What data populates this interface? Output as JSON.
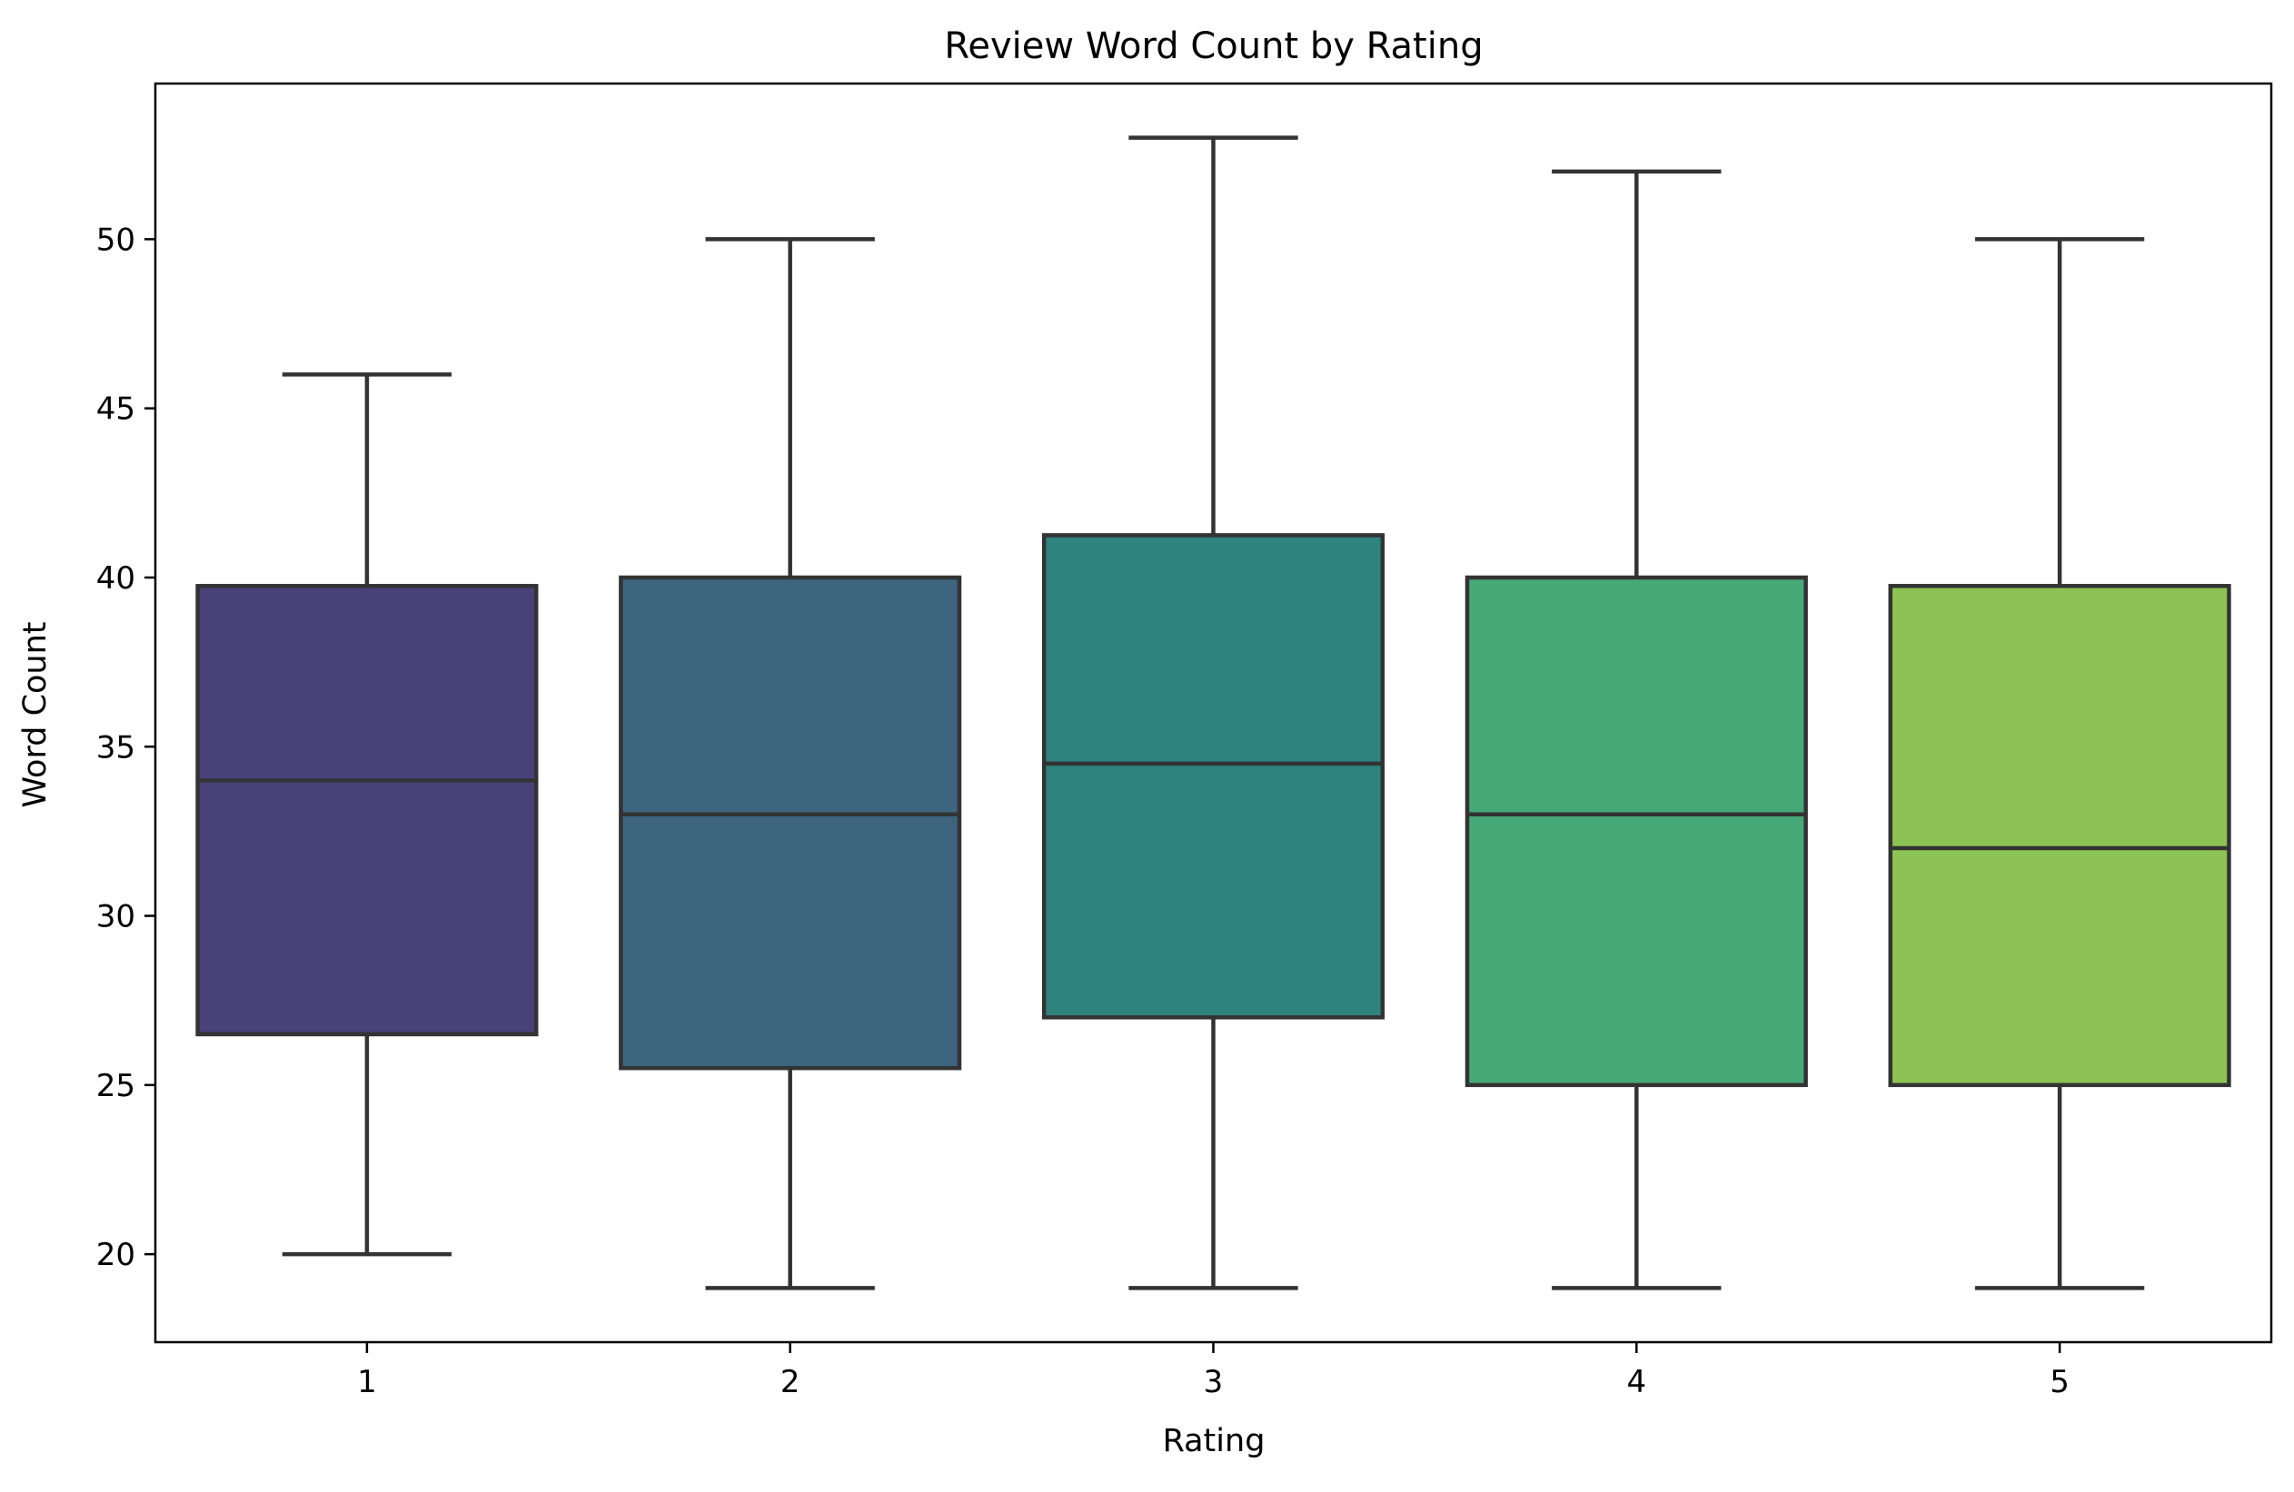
{
  "chart_data": {
    "type": "box",
    "title": "Review Word Count by Rating",
    "xlabel": "Rating",
    "ylabel": "Word Count",
    "categories": [
      "1",
      "2",
      "3",
      "4",
      "5"
    ],
    "ylim": [
      17.4,
      54.6
    ],
    "yticks": [
      20,
      25,
      30,
      35,
      40,
      45,
      50
    ],
    "grid": false,
    "legend": "none",
    "boxes": [
      {
        "category": "1",
        "whisker_low": 20,
        "q1": 26.5,
        "median": 34.0,
        "q3": 39.75,
        "whisker_high": 46,
        "color": "#48417a"
      },
      {
        "category": "2",
        "whisker_low": 19,
        "q1": 25.5,
        "median": 33.0,
        "q3": 40.0,
        "whisker_high": 50,
        "color": "#3d6580"
      },
      {
        "category": "3",
        "whisker_low": 19,
        "q1": 27.0,
        "median": 34.5,
        "q3": 41.25,
        "whisker_high": 53,
        "color": "#2e837e"
      },
      {
        "category": "4",
        "whisker_low": 19,
        "q1": 25.0,
        "median": 33.0,
        "q3": 40.0,
        "whisker_high": 52,
        "color": "#46a877"
      },
      {
        "category": "5",
        "whisker_low": 19,
        "q1": 25.0,
        "median": 32.0,
        "q3": 39.75,
        "whisker_high": 50,
        "color": "#8cc354"
      }
    ],
    "line_color": "#333333"
  }
}
